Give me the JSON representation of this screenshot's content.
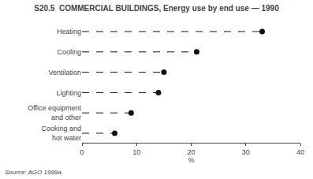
{
  "chart_data": {
    "type": "lollipop",
    "orientation": "horizontal",
    "title": "S20.5  COMMERCIAL BUILDINGS, Energy use by end use — 1990",
    "categories": [
      "Heating",
      "Cooling",
      "Ventilation",
      "Lighting",
      "Office equipment\nand other",
      "Cooking and\nhot water"
    ],
    "values": [
      33,
      21,
      15,
      14,
      9,
      6
    ],
    "xlabel": "%",
    "xlim": [
      0,
      40
    ],
    "xticks": [
      0,
      10,
      20,
      30,
      40
    ],
    "annotations": [
      "Source: AGO 1999a."
    ],
    "color": "#111111",
    "line_style": "dashed",
    "marker": "circle",
    "grid": false
  }
}
